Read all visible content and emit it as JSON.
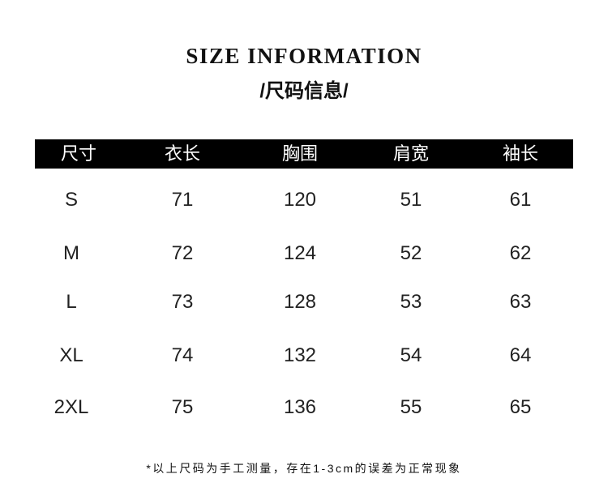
{
  "title": "SIZE INFORMATION",
  "subtitle": "/尺码信息/",
  "table": {
    "headers": [
      "尺寸",
      "衣长",
      "胸围",
      "肩宽",
      "袖长"
    ],
    "rows": [
      [
        "S",
        "71",
        "120",
        "51",
        "61"
      ],
      [
        "M",
        "72",
        "124",
        "52",
        "62"
      ],
      [
        "L",
        "73",
        "128",
        "53",
        "63"
      ],
      [
        "XL",
        "74",
        "132",
        "54",
        "64"
      ],
      [
        "2XL",
        "75",
        "136",
        "55",
        "65"
      ]
    ]
  },
  "note": "*以上尺码为手工测量，存在1-3cm的误差为正常现象"
}
